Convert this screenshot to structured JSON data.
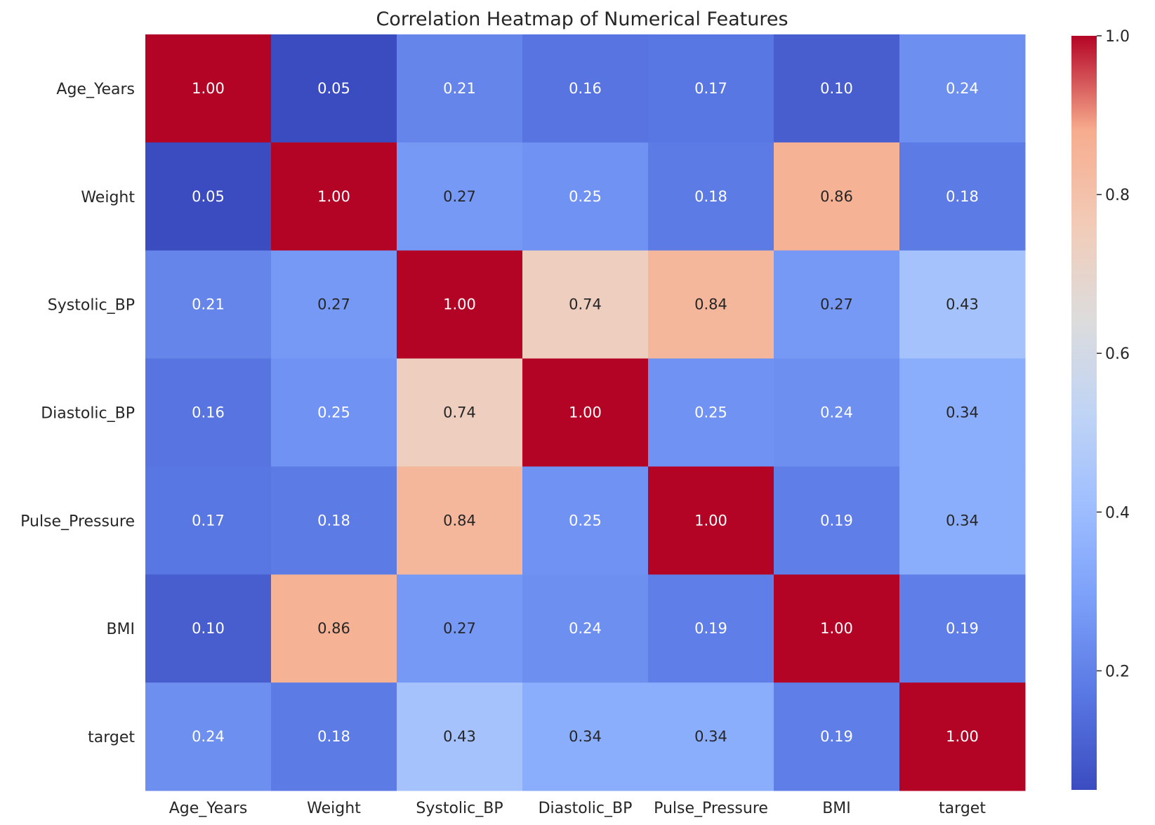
{
  "chart_data": {
    "type": "heatmap",
    "title": "Correlation Heatmap of Numerical Features",
    "xlabel": "",
    "ylabel": "",
    "x_categories": [
      "Age_Years",
      "Weight",
      "Systolic_BP",
      "Diastolic_BP",
      "Pulse_Pressure",
      "BMI",
      "target"
    ],
    "y_categories": [
      "Age_Years",
      "Weight",
      "Systolic_BP",
      "Diastolic_BP",
      "Pulse_Pressure",
      "BMI",
      "target"
    ],
    "values": [
      [
        1.0,
        0.05,
        0.21,
        0.16,
        0.17,
        0.1,
        0.24
      ],
      [
        0.05,
        1.0,
        0.27,
        0.25,
        0.18,
        0.86,
        0.18
      ],
      [
        0.21,
        0.27,
        1.0,
        0.74,
        0.84,
        0.27,
        0.43
      ],
      [
        0.16,
        0.25,
        0.74,
        1.0,
        0.25,
        0.24,
        0.34
      ],
      [
        0.17,
        0.18,
        0.84,
        0.25,
        1.0,
        0.19,
        0.34
      ],
      [
        0.1,
        0.86,
        0.27,
        0.24,
        0.19,
        1.0,
        0.19
      ],
      [
        0.24,
        0.18,
        0.43,
        0.34,
        0.34,
        0.19,
        1.0
      ]
    ],
    "value_format": "0.00",
    "colormap": "coolwarm",
    "color_range": [
      0.05,
      1.0
    ],
    "colorbar": {
      "position": "right",
      "ticks": [
        0.2,
        0.4,
        0.6,
        0.8,
        1.0
      ],
      "tick_labels": [
        "0.2",
        "0.4",
        "0.6",
        "0.8",
        "1.0"
      ]
    },
    "grid": false
  }
}
